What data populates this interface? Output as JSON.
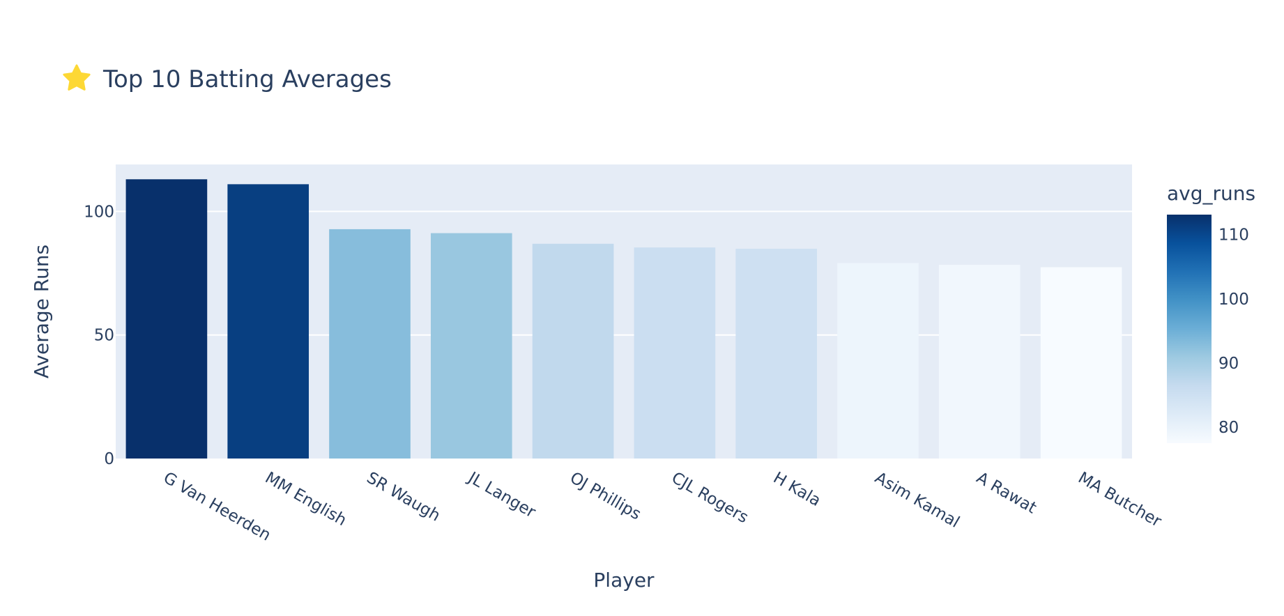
{
  "chart_data": {
    "type": "bar",
    "title": "Top 10 Batting Averages",
    "title_icon": "star-icon",
    "xlabel": "Player",
    "ylabel": "Average Runs",
    "categories": [
      "G Van Heerden",
      "MM English",
      "SR Waugh",
      "JL Langer",
      "OJ Phillips",
      "CJL Rogers",
      "H Kala",
      "Asim Kamal",
      "A Rawat",
      "MA Butcher"
    ],
    "values": [
      113,
      111,
      92.8,
      91.2,
      86.9,
      85.4,
      84.9,
      79.1,
      78.4,
      77.4
    ],
    "ylim": [
      0,
      119
    ],
    "yticks": [
      0,
      50,
      100
    ],
    "grid": true,
    "colorbar": {
      "title": "avg_runs",
      "range": [
        77.4,
        113
      ],
      "ticks": [
        80,
        90,
        100,
        110
      ],
      "colorscale": "Blues"
    },
    "colors": {
      "plot_bg": "#e5ecf6",
      "grid": "#ffffff",
      "text": "#2a3f5f",
      "star": "#fdd835"
    }
  }
}
